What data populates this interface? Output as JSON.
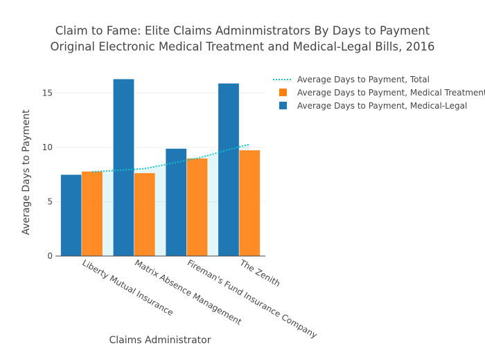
{
  "chart_data": {
    "type": "bar",
    "title": [
      "Claim to Fame: Elite Claims Adminmistrators By Days to Payment",
      "Original Electronic Medical Treatment and Medical-Legal Bills, 2016"
    ],
    "xlabel": "Claims Administrator",
    "ylabel": "Average Days to Payment",
    "categories": [
      "Liberty Mutual Insurance",
      "Matrix Absence Management",
      "Fireman's Fund Insurance Company",
      "The Zenith"
    ],
    "ylim": [
      0,
      17.2
    ],
    "yticks": [
      0,
      5,
      10,
      15
    ],
    "grid": true,
    "legend_position": "top-right",
    "series": [
      {
        "name": "Average Days to Payment, Medical-Legal",
        "type": "bar",
        "color": "#1f77b4",
        "values": [
          7.5,
          16.3,
          9.9,
          15.9
        ]
      },
      {
        "name": "Average Days to Payment, Medical Treatment",
        "type": "bar",
        "color": "#ff7f0e",
        "values": [
          7.8,
          7.65,
          9.0,
          9.75
        ]
      },
      {
        "name": "Average Days to Payment, Total",
        "type": "line",
        "style": "dotted",
        "fill": "tozeroy",
        "color": "#17becf",
        "values": [
          7.75,
          8.05,
          9.0,
          10.3
        ]
      }
    ],
    "legend_order": [
      2,
      1,
      0
    ]
  }
}
